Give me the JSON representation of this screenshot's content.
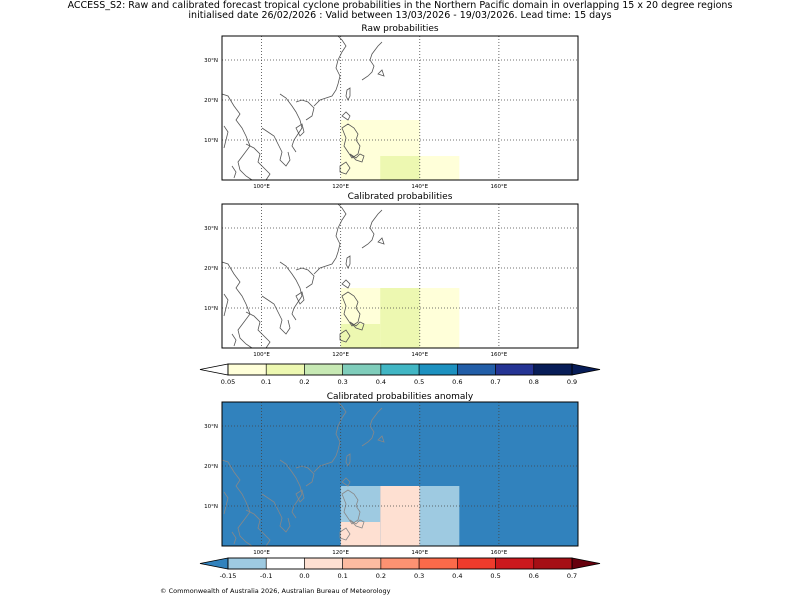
{
  "header": {
    "title_line1": "ACCESS_S2: Raw and calibrated forecast tropical cyclone probabilities in the Northern Pacific domain in overlapping 15 x 20 degree regions",
    "title_line2": "initialised date 26/02/2026 :  Valid between 13/03/2026 - 19/03/2026. Lead time: 15 days"
  },
  "map_axes": {
    "lon_range": [
      90,
      180
    ],
    "lat_range": [
      0,
      36
    ],
    "lon_ticks": [
      100,
      120,
      140,
      160
    ],
    "lon_labels": [
      "100°E",
      "120°E",
      "140°E",
      "160°E"
    ],
    "lat_ticks": [
      10,
      20,
      30
    ],
    "lat_labels": [
      "10°N",
      "20°N",
      "30°N"
    ]
  },
  "panels": {
    "raw": {
      "title": "Raw probabilities",
      "regions": [
        {
          "lon0": 120,
          "lon1": 140,
          "lat0": 0,
          "lat1": 15,
          "value": 0.07
        },
        {
          "lon0": 130,
          "lon1": 150,
          "lat0": 0,
          "lat1": 6,
          "value": 0.07
        },
        {
          "lon0": 130,
          "lon1": 140,
          "lat0": 0,
          "lat1": 6,
          "value": 0.12
        }
      ]
    },
    "calibrated": {
      "title": "Calibrated probabilities",
      "regions": [
        {
          "lon0": 120,
          "lon1": 150,
          "lat0": 0,
          "lat1": 15,
          "value": 0.07
        },
        {
          "lon0": 130,
          "lon1": 140,
          "lat0": 0,
          "lat1": 15,
          "value": 0.12
        },
        {
          "lon0": 120,
          "lon1": 130,
          "lat0": 0,
          "lat1": 6,
          "value": 0.12
        }
      ]
    },
    "anomaly": {
      "title": "Calibrated probabilities anomaly",
      "background_value": -0.2,
      "regions": [
        {
          "lon0": 120,
          "lon1": 130,
          "lat0": 6,
          "lat1": 15,
          "value": -0.12
        },
        {
          "lon0": 120,
          "lon1": 130,
          "lat0": 0,
          "lat1": 6,
          "value": 0.0
        },
        {
          "lon0": 130,
          "lon1": 140,
          "lat0": 0,
          "lat1": 15,
          "value": 0.0
        },
        {
          "lon0": 140,
          "lon1": 150,
          "lat0": 0,
          "lat1": 15,
          "value": -0.12
        }
      ]
    }
  },
  "colorbar_prob": {
    "labels": [
      "0.05",
      "0.1",
      "0.2",
      "0.3",
      "0.4",
      "0.5",
      "0.6",
      "0.7",
      "0.8",
      "0.9"
    ],
    "colors": [
      "#ffffd9",
      "#edf8b1",
      "#c7e9b4",
      "#7fcdbb",
      "#41b6c4",
      "#1d91c0",
      "#225ea8",
      "#253494",
      "#081d58"
    ],
    "under_color": "#ffffff",
    "over_color": "#081d58"
  },
  "colorbar_anom": {
    "labels": [
      "-0.15",
      "-0.1",
      "0.0",
      "0.1",
      "0.2",
      "0.3",
      "0.4",
      "0.5",
      "0.6",
      "0.7"
    ],
    "colors": [
      "#9ecae1",
      "#ffffff",
      "#fee0d2",
      "#fcbba1",
      "#fc9272",
      "#fb6a4a",
      "#ef3b2c",
      "#cb181d",
      "#a50f15"
    ],
    "under_color": "#3182bd",
    "over_color": "#67000d"
  },
  "footer": "© Commonwealth of Australia 2026, Australian Bureau of Meteorology"
}
